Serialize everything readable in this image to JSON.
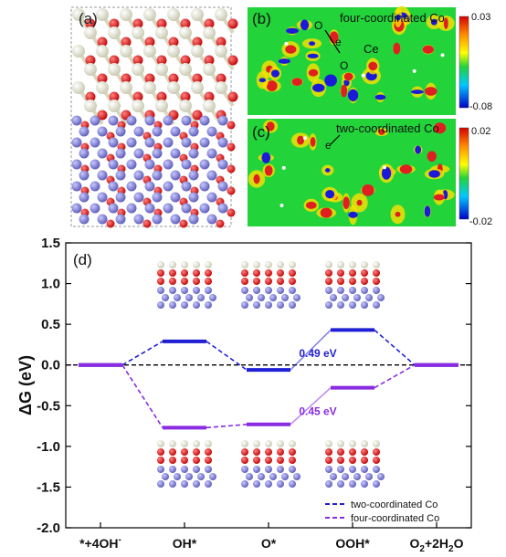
{
  "panels": {
    "a": {
      "label": "(a)"
    },
    "b": {
      "label": "(b)",
      "title": "four-coordinated Co",
      "annotations": {
        "o_top": "O",
        "e": "e",
        "ce": "Ce",
        "o_bottom": "O"
      },
      "colorbar": {
        "max": "0.03",
        "min": "-0.08"
      }
    },
    "c": {
      "label": "(c)",
      "title": "two-coordinated Co",
      "annotations": {
        "e": "e"
      },
      "colorbar": {
        "max": "0.02",
        "min": "-0.02"
      }
    },
    "d": {
      "label": "(d)"
    }
  },
  "colors": {
    "two_coordinated": "#1f1fd6",
    "four_coordinated": "#8a2be2",
    "atom_o": "#e01b1b",
    "atom_co": "#7f7fd8",
    "atom_ce": "#eeeed8",
    "field_bg": "#22d33a"
  },
  "chart_data": {
    "type": "line",
    "title": "",
    "ylabel": "ΔG (eV)",
    "xlabel": "",
    "ylim": [
      -2.0,
      1.5
    ],
    "yticks": [
      "1.5",
      "1.0",
      "0.5",
      "0.0",
      "-0.5",
      "-1.0",
      "-1.5",
      "-2.0"
    ],
    "categories": [
      "*+4OH⁻",
      "OH*",
      "O*",
      "OOH*",
      "O₂+2H₂O"
    ],
    "category_labels": [
      {
        "text": "*+4OH",
        "sup": "-",
        "sub": ""
      },
      {
        "text": "OH*",
        "sup": "",
        "sub": ""
      },
      {
        "text": "O*",
        "sup": "",
        "sub": ""
      },
      {
        "text": "OOH*",
        "sup": "",
        "sub": ""
      },
      {
        "text": "O2+2H2O",
        "sup": "",
        "sub": ""
      }
    ],
    "series": [
      {
        "name": "two-coordinated Co",
        "values": [
          0.0,
          0.29,
          -0.06,
          0.43,
          0.0
        ],
        "color": "#1f1fd6"
      },
      {
        "name": "four-coordinated Co",
        "values": [
          0.0,
          -0.77,
          -0.73,
          -0.28,
          0.0
        ],
        "color": "#8a2be2"
      }
    ],
    "annotations": [
      {
        "text": "0.49 eV",
        "series": "two-coordinated Co",
        "step": "O* → OOH*"
      },
      {
        "text": "0.45 eV",
        "series": "four-coordinated Co",
        "step": "O* → OOH*"
      }
    ],
    "reference_line": 0.0,
    "legend_position": "bottom-right"
  }
}
